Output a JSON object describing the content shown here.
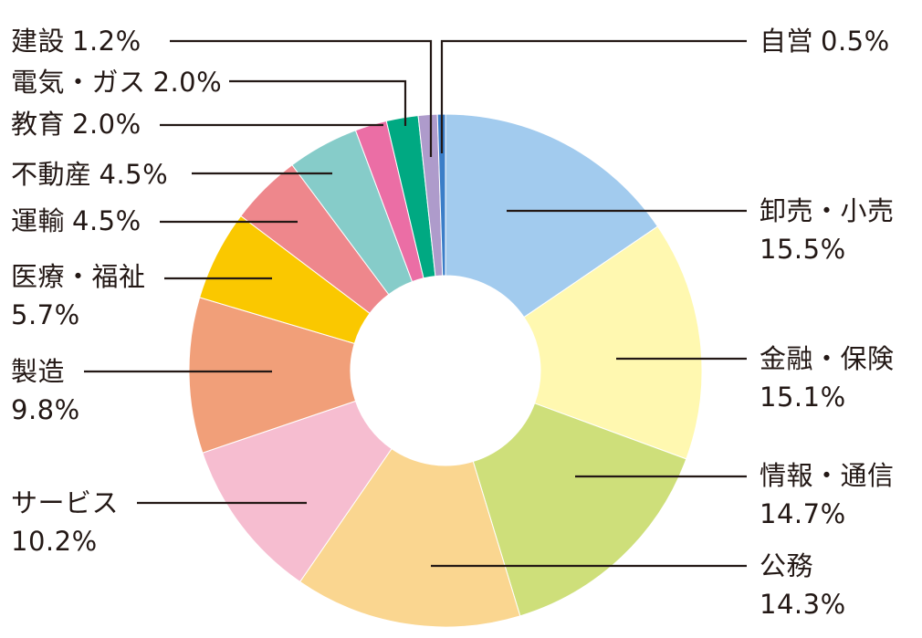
{
  "chart_data": {
    "type": "donut",
    "title": "",
    "start": "12 o'clock, clockwise",
    "segments": [
      {
        "name": "卸売・小売",
        "value": 15.5,
        "label": "15.5%",
        "color": "#A2CBEE"
      },
      {
        "name": "金融・保険",
        "value": 15.1,
        "label": "15.1%",
        "color": "#FFF8B0"
      },
      {
        "name": "情報・通信",
        "value": 14.7,
        "label": "14.7%",
        "color": "#CEDF7A"
      },
      {
        "name": "公務",
        "value": 14.3,
        "label": "14.3%",
        "color": "#FAD690"
      },
      {
        "name": "サービス",
        "value": 10.2,
        "label": "10.2%",
        "color": "#F6BDD0"
      },
      {
        "name": "製造",
        "value": 9.8,
        "label": "9.8%",
        "color": "#F19F79"
      },
      {
        "name": "医療・福祉",
        "value": 5.7,
        "label": "5.7%",
        "color": "#FAC800"
      },
      {
        "name": "運輸",
        "value": 4.5,
        "label": "4.5%",
        "color": "#EE878C"
      },
      {
        "name": "不動産",
        "value": 4.5,
        "label": "4.5%",
        "color": "#86CCC9"
      },
      {
        "name": "教育",
        "value": 2.0,
        "label": "2.0%",
        "color": "#EB6EA5"
      },
      {
        "name": "電気・ガス",
        "value": 2.0,
        "label": "2.0%",
        "color": "#00A982"
      },
      {
        "name": "建設",
        "value": 1.2,
        "label": "1.2%",
        "color": "#AE9BCB"
      },
      {
        "name": "自営",
        "value": 0.5,
        "label": "0.5%",
        "color": "#3B7EC8"
      }
    ]
  }
}
